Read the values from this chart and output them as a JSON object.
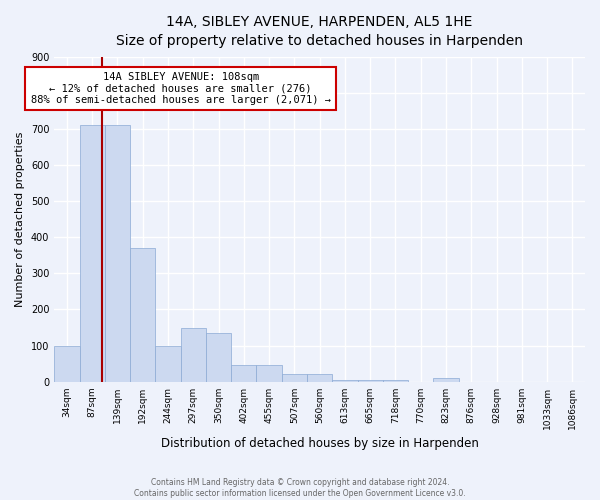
{
  "title": "14A, SIBLEY AVENUE, HARPENDEN, AL5 1HE",
  "subtitle": "Size of property relative to detached houses in Harpenden",
  "xlabel": "Distribution of detached houses by size in Harpenden",
  "ylabel": "Number of detached properties",
  "bar_labels": [
    "34sqm",
    "87sqm",
    "139sqm",
    "192sqm",
    "244sqm",
    "297sqm",
    "350sqm",
    "402sqm",
    "455sqm",
    "507sqm",
    "560sqm",
    "613sqm",
    "665sqm",
    "718sqm",
    "770sqm",
    "823sqm",
    "876sqm",
    "928sqm",
    "981sqm",
    "1033sqm",
    "1086sqm"
  ],
  "bar_values": [
    100,
    710,
    710,
    370,
    100,
    150,
    135,
    45,
    45,
    20,
    20,
    5,
    5,
    5,
    0,
    10,
    0,
    0,
    0,
    0,
    0
  ],
  "bar_color": "#ccd9f0",
  "bar_edge_color": "#8baad4",
  "marker_line_color": "#aa0000",
  "annotation_box_color": "#ffffff",
  "annotation_box_edge": "#cc0000",
  "marker_label": "14A SIBLEY AVENUE: 108sqm",
  "annotation_line1": "← 12% of detached houses are smaller (276)",
  "annotation_line2": "88% of semi-detached houses are larger (2,071) →",
  "ylim": [
    0,
    900
  ],
  "yticks": [
    0,
    100,
    200,
    300,
    400,
    500,
    600,
    700,
    800,
    900
  ],
  "footer_line1": "Contains HM Land Registry data © Crown copyright and database right 2024.",
  "footer_line2": "Contains public sector information licensed under the Open Government Licence v3.0.",
  "bg_color": "#eef2fb",
  "grid_color": "#ffffff",
  "title_fontsize": 10,
  "subtitle_fontsize": 9,
  "tick_fontsize": 6.5,
  "ylabel_fontsize": 8,
  "xlabel_fontsize": 8.5,
  "annotation_fontsize": 7.5,
  "footer_fontsize": 5.5
}
